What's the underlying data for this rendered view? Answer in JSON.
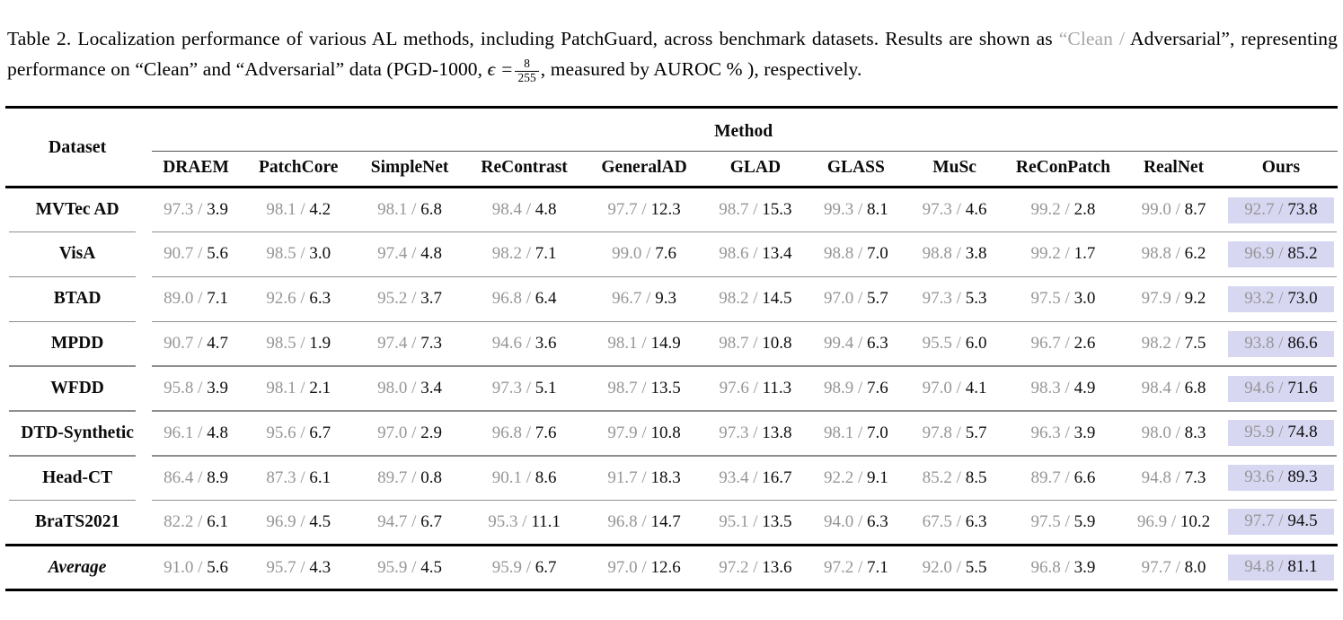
{
  "caption": {
    "part1": "Table 2. Localization performance of various AL methods, including PatchGuard, across benchmark datasets. Results are shown as ",
    "gray_part": "“Clean /",
    "part2": " Adversarial”, representing performance on “Clean” and “Adversarial” data (PGD-1000, ",
    "epsilon": "ϵ =",
    "frac_numerator": "8",
    "frac_denominator": "255",
    "part3": ", measured by AUROC % ), respectively."
  },
  "colors": {
    "clean_text": "#969696",
    "adversarial_text": "#0d0d0d",
    "ours_highlight": "#d8d7f2",
    "caption_gray": "#a6a6a6",
    "rule_gray": "#8f8f8f",
    "rule_black": "#000000"
  },
  "table": {
    "dataset_header": "Dataset",
    "method_group_header": "Method",
    "methods": [
      "DRAEM",
      "PatchCore",
      "SimpleNet",
      "ReContrast",
      "GeneralAD",
      "GLAD",
      "GLASS",
      "MuSc",
      "ReConPatch",
      "RealNet",
      "Ours"
    ],
    "value_format": "clean / adversarial (AUROC %)",
    "rows": [
      {
        "label": "MVTec AD",
        "cells": [
          [
            "97.3",
            "3.9"
          ],
          [
            "98.1",
            "4.2"
          ],
          [
            "98.1",
            "6.8"
          ],
          [
            "98.4",
            "4.8"
          ],
          [
            "97.7",
            "12.3"
          ],
          [
            "98.7",
            "15.3"
          ],
          [
            "99.3",
            "8.1"
          ],
          [
            "97.3",
            "4.6"
          ],
          [
            "99.2",
            "2.8"
          ],
          [
            "99.0",
            "8.7"
          ],
          [
            "92.7",
            "73.8"
          ]
        ]
      },
      {
        "label": "VisA",
        "cells": [
          [
            "90.7",
            "5.6"
          ],
          [
            "98.5",
            "3.0"
          ],
          [
            "97.4",
            "4.8"
          ],
          [
            "98.2",
            "7.1"
          ],
          [
            "99.0",
            "7.6"
          ],
          [
            "98.6",
            "13.4"
          ],
          [
            "98.8",
            "7.0"
          ],
          [
            "98.8",
            "3.8"
          ],
          [
            "99.2",
            "1.7"
          ],
          [
            "98.8",
            "6.2"
          ],
          [
            "96.9",
            "85.2"
          ]
        ]
      },
      {
        "label": "BTAD",
        "cells": [
          [
            "89.0",
            "7.1"
          ],
          [
            "92.6",
            "6.3"
          ],
          [
            "95.2",
            "3.7"
          ],
          [
            "96.8",
            "6.4"
          ],
          [
            "96.7",
            "9.3"
          ],
          [
            "98.2",
            "14.5"
          ],
          [
            "97.0",
            "5.7"
          ],
          [
            "97.3",
            "5.3"
          ],
          [
            "97.5",
            "3.0"
          ],
          [
            "97.9",
            "9.2"
          ],
          [
            "93.2",
            "73.0"
          ]
        ]
      },
      {
        "label": "MPDD",
        "cells": [
          [
            "90.7",
            "4.7"
          ],
          [
            "98.5",
            "1.9"
          ],
          [
            "97.4",
            "7.3"
          ],
          [
            "94.6",
            "3.6"
          ],
          [
            "98.1",
            "14.9"
          ],
          [
            "98.7",
            "10.8"
          ],
          [
            "99.4",
            "6.3"
          ],
          [
            "95.5",
            "6.0"
          ],
          [
            "96.7",
            "2.6"
          ],
          [
            "98.2",
            "7.5"
          ],
          [
            "93.8",
            "86.6"
          ]
        ]
      },
      {
        "label": "WFDD",
        "cells": [
          [
            "95.8",
            "3.9"
          ],
          [
            "98.1",
            "2.1"
          ],
          [
            "98.0",
            "3.4"
          ],
          [
            "97.3",
            "5.1"
          ],
          [
            "98.7",
            "13.5"
          ],
          [
            "97.6",
            "11.3"
          ],
          [
            "98.9",
            "7.6"
          ],
          [
            "97.0",
            "4.1"
          ],
          [
            "98.3",
            "4.9"
          ],
          [
            "98.4",
            "6.8"
          ],
          [
            "94.6",
            "71.6"
          ]
        ]
      },
      {
        "label": "DTD-Synthetic",
        "cells": [
          [
            "96.1",
            "4.8"
          ],
          [
            "95.6",
            "6.7"
          ],
          [
            "97.0",
            "2.9"
          ],
          [
            "96.8",
            "7.6"
          ],
          [
            "97.9",
            "10.8"
          ],
          [
            "97.3",
            "13.8"
          ],
          [
            "98.1",
            "7.0"
          ],
          [
            "97.8",
            "5.7"
          ],
          [
            "96.3",
            "3.9"
          ],
          [
            "98.0",
            "8.3"
          ],
          [
            "95.9",
            "74.8"
          ]
        ]
      },
      {
        "label": "Head-CT",
        "cells": [
          [
            "86.4",
            "8.9"
          ],
          [
            "87.3",
            "6.1"
          ],
          [
            "89.7",
            "0.8"
          ],
          [
            "90.1",
            "8.6"
          ],
          [
            "91.7",
            "18.3"
          ],
          [
            "93.4",
            "16.7"
          ],
          [
            "92.2",
            "9.1"
          ],
          [
            "85.2",
            "8.5"
          ],
          [
            "89.7",
            "6.6"
          ],
          [
            "94.8",
            "7.3"
          ],
          [
            "93.6",
            "89.3"
          ]
        ]
      },
      {
        "label": "BraTS2021",
        "cells": [
          [
            "82.2",
            "6.1"
          ],
          [
            "96.9",
            "4.5"
          ],
          [
            "94.7",
            "6.7"
          ],
          [
            "95.3",
            "11.1"
          ],
          [
            "96.8",
            "14.7"
          ],
          [
            "95.1",
            "13.5"
          ],
          [
            "94.0",
            "6.3"
          ],
          [
            "67.5",
            "6.3"
          ],
          [
            "97.5",
            "5.9"
          ],
          [
            "96.9",
            "10.2"
          ],
          [
            "97.7",
            "94.5"
          ]
        ]
      },
      {
        "label": "Average",
        "italic": true,
        "cells": [
          [
            "91.0",
            "5.6"
          ],
          [
            "95.7",
            "4.3"
          ],
          [
            "95.9",
            "4.5"
          ],
          [
            "95.9",
            "6.7"
          ],
          [
            "97.0",
            "12.6"
          ],
          [
            "97.2",
            "13.6"
          ],
          [
            "97.2",
            "7.1"
          ],
          [
            "92.0",
            "5.5"
          ],
          [
            "96.8",
            "3.9"
          ],
          [
            "97.7",
            "8.0"
          ],
          [
            "94.8",
            "81.1"
          ]
        ]
      }
    ]
  }
}
